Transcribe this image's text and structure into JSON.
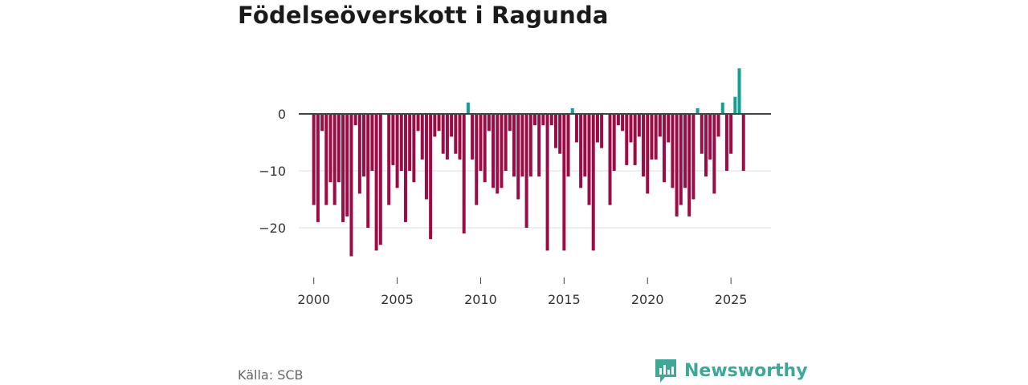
{
  "header": {
    "title": "Födelseöverskott i Ragunda"
  },
  "footer": {
    "source": "Källa: SCB",
    "brand": "Newsworthy"
  },
  "colors": {
    "negative": "#9b0b45",
    "positive": "#139f94",
    "zero_line": "#444444",
    "grid": "#dddddd",
    "brand": "#3fa796"
  },
  "chart_data": {
    "type": "bar",
    "title": "Födelseöverskott i Ragunda",
    "xlabel": "",
    "ylabel": "",
    "ylim": [
      -27,
      8
    ],
    "xlim": [
      1999.1,
      2027.4
    ],
    "y_ticks": [
      0,
      -10,
      -20
    ],
    "y_tick_labels": [
      "0",
      "−10",
      "−20"
    ],
    "x_ticks": [
      2000,
      2005,
      2010,
      2015,
      2020,
      2025
    ],
    "x_tick_labels": [
      "2000",
      "2005",
      "2010",
      "2015",
      "2020",
      "2025"
    ],
    "grid": true,
    "period": "quarterly",
    "series": [
      {
        "name": "Födelseöverskott",
        "start": 2000.0,
        "step": 0.25,
        "values": [
          -16,
          -19,
          -3,
          -16,
          -12,
          -16,
          -12,
          -19,
          -18,
          -25,
          -2,
          -14,
          -11,
          -20,
          -10,
          -24,
          -23,
          0,
          -16,
          -9,
          -13,
          -10,
          -19,
          -10,
          -12,
          -3,
          -8,
          -15,
          -22,
          -4,
          -3,
          -7,
          -8,
          -4,
          -7,
          -8,
          -21,
          2,
          -8,
          -16,
          -10,
          -12,
          -3,
          -13,
          -14,
          -13,
          -10,
          -3,
          -11,
          -15,
          -11,
          -20,
          -11,
          -2,
          -11,
          -2,
          -24,
          -2,
          -6,
          -7,
          -24,
          -11,
          1,
          -5,
          -13,
          -11,
          -16,
          -24,
          -5,
          -6,
          0,
          -16,
          -10,
          -2,
          -3,
          -9,
          -5,
          -9,
          -4,
          -11,
          -14,
          -8,
          -8,
          -4,
          -12,
          -5,
          -13,
          -18,
          -16,
          -13,
          -18,
          -15,
          1,
          -7,
          -11,
          -8,
          -14,
          -4,
          2,
          -10,
          -7,
          3,
          8,
          -10
        ]
      }
    ]
  }
}
